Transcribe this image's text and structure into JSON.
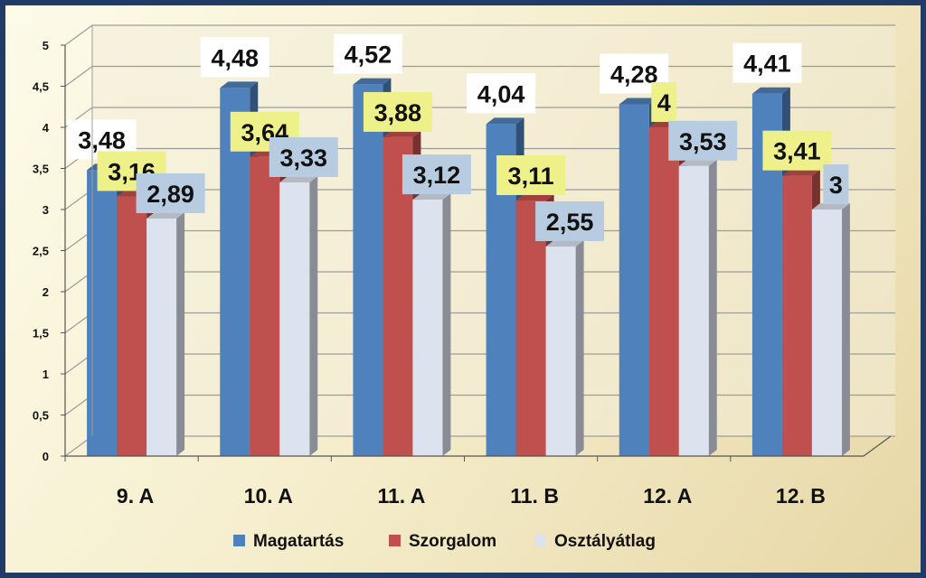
{
  "chart_data": {
    "type": "bar",
    "categories": [
      "9. A",
      "10. A",
      "11. A",
      "11. B",
      "12. A",
      "12. B"
    ],
    "series": [
      {
        "name": "Magatartás",
        "values": [
          3.48,
          4.48,
          4.52,
          4.04,
          4.28,
          4.41
        ],
        "labels": [
          "3,48",
          "4,48",
          "4,52",
          "4,04",
          "4,28",
          "4,41"
        ],
        "color": "#4f81bd",
        "label_bg": "#ffffff"
      },
      {
        "name": "Szorgalom",
        "values": [
          3.16,
          3.64,
          3.88,
          3.11,
          4.0,
          3.41
        ],
        "labels": [
          "3,16",
          "3,64",
          "3,88",
          "3,11",
          "4",
          "3,41"
        ],
        "color": "#c0504d",
        "label_bg": "#eef08a"
      },
      {
        "name": "Osztályátlag",
        "values": [
          2.89,
          3.33,
          3.12,
          2.55,
          3.53,
          3.0
        ],
        "labels": [
          "2,89",
          "3,33",
          "3,12",
          "2,55",
          "3,53",
          "3"
        ],
        "color": "#dde2ef",
        "label_bg": "#b7cce0"
      }
    ],
    "ylim": [
      0,
      5
    ],
    "yticks": [
      "0",
      "0,5",
      "1",
      "1,5",
      "2",
      "2,5",
      "3",
      "3,5",
      "4",
      "4,5",
      "5"
    ],
    "grid": true,
    "legend_position": "bottom",
    "style": "3d-clustered-column"
  },
  "colors": {
    "frame_border": "#1f3b66",
    "grid": "#9c9c9c",
    "wall": "#f3edd8"
  }
}
